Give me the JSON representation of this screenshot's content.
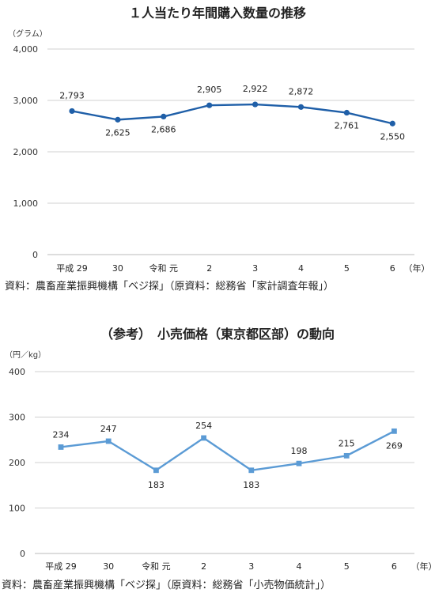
{
  "chart_data": [
    {
      "type": "line",
      "title": "１人当たり年間購入数量の推移",
      "unit_label": "（グラム）",
      "year_suffix": "（年）",
      "categories": [
        "平成 29",
        "30",
        "令和 元",
        "2",
        "3",
        "4",
        "5",
        "6"
      ],
      "series": [
        {
          "values": [
            2793,
            2625,
            2686,
            2905,
            2922,
            2872,
            2761,
            2550
          ]
        }
      ],
      "data_labels": [
        "2,793",
        "2,625",
        "2,686",
        "2,905",
        "2,922",
        "2,872",
        "2,761",
        "2,550"
      ],
      "yticks": [
        "0",
        "1,000",
        "2,000",
        "3,000",
        "4,000"
      ],
      "ylim": [
        0,
        4000
      ],
      "grid": true,
      "marker": "circle",
      "color": "#1f5fa8",
      "source": "資料：農畜産業振興機構「ベジ探」（原資料：総務省「家計調査年報」）"
    },
    {
      "type": "line",
      "title": "（参考）　小売価格（東京都区部）の動向",
      "unit_label": "（円／kg）",
      "year_suffix": "（年）",
      "categories": [
        "平成 29",
        "30",
        "令和 元",
        "2",
        "3",
        "4",
        "5",
        "6"
      ],
      "series": [
        {
          "values": [
            234,
            247,
            183,
            254,
            183,
            198,
            215,
            269
          ]
        }
      ],
      "data_labels": [
        "234",
        "247",
        "183",
        "254",
        "183",
        "198",
        "215",
        "269"
      ],
      "yticks": [
        "0",
        "100",
        "200",
        "300",
        "400"
      ],
      "ylim": [
        0,
        400
      ],
      "grid": true,
      "marker": "square",
      "color": "#5b9bd5",
      "source": "資料：農畜産業振興機構「ベジ探」（原資料：総務省「小売物価統計」）"
    }
  ]
}
